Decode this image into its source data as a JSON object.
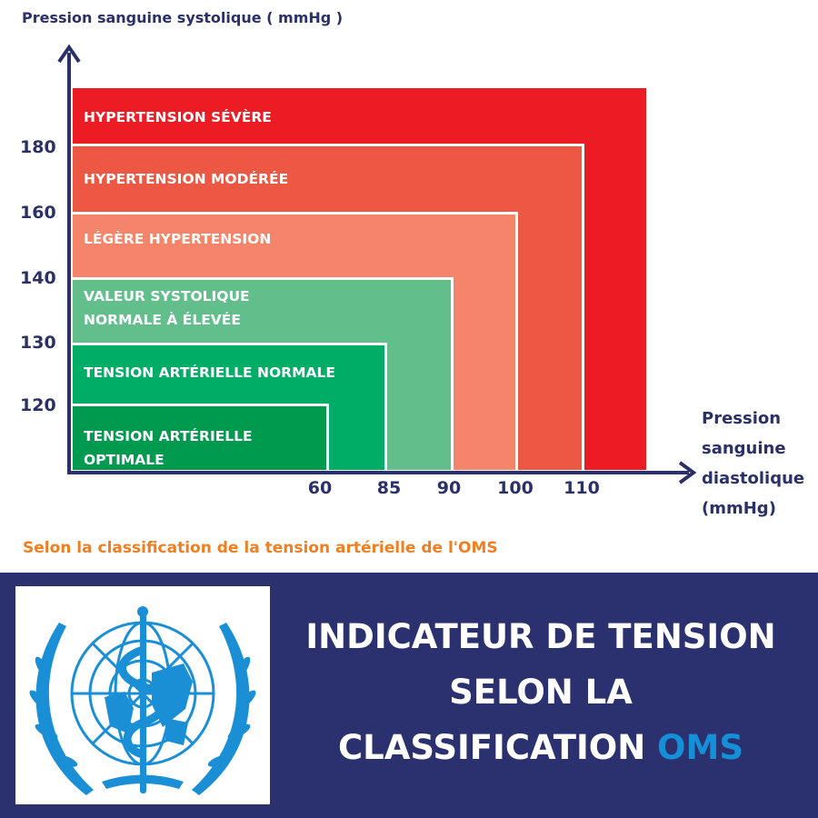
{
  "chart_data": {
    "type": "nested-zones",
    "ylabel": "Pression sanguine systolique ( mmHg )",
    "xlabel": "Pression sanguine diastolique (mmHg)",
    "y_ticks": [
      "180",
      "160",
      "140",
      "130",
      "120"
    ],
    "x_ticks": [
      "60",
      "85",
      "90",
      "100",
      "110"
    ],
    "zones": [
      {
        "label": "HYPERTENSION SÉVÈRE",
        "systolic_min": 180,
        "diastolic_min": 110,
        "color": "#ec1c24"
      },
      {
        "label": "HYPERTENSION MODÉRÉE",
        "systolic_max": 180,
        "diastolic_max": 110,
        "color": "#ec5843"
      },
      {
        "label": "LÉGÈRE HYPERTENSION",
        "systolic_max": 160,
        "diastolic_max": 100,
        "color": "#f4856a"
      },
      {
        "label": "VALEUR SYSTOLIQUE\nNORMALE À ÉLEVÉE",
        "systolic_max": 140,
        "diastolic_max": 90,
        "color": "#62bf8b"
      },
      {
        "label": "TENSION ARTÉRIELLE NORMALE",
        "systolic_max": 130,
        "diastolic_max": 85,
        "color": "#00ad67"
      },
      {
        "label": "TENSION ARTÉRIELLE\nOPTIMALE",
        "systolic_max": 120,
        "diastolic_max": 60,
        "color": "#009a4f"
      }
    ]
  },
  "footnote": "Selon la classification de la tension artérielle de l'OMS",
  "banner": {
    "title_line1": "INDICATEUR DE TENSION",
    "title_line2": "SELON LA",
    "title_line3_prefix": "CLASSIFICATION ",
    "title_highlight": "OMS",
    "highlight_color": "#1490d8",
    "logo": "who-emblem"
  }
}
